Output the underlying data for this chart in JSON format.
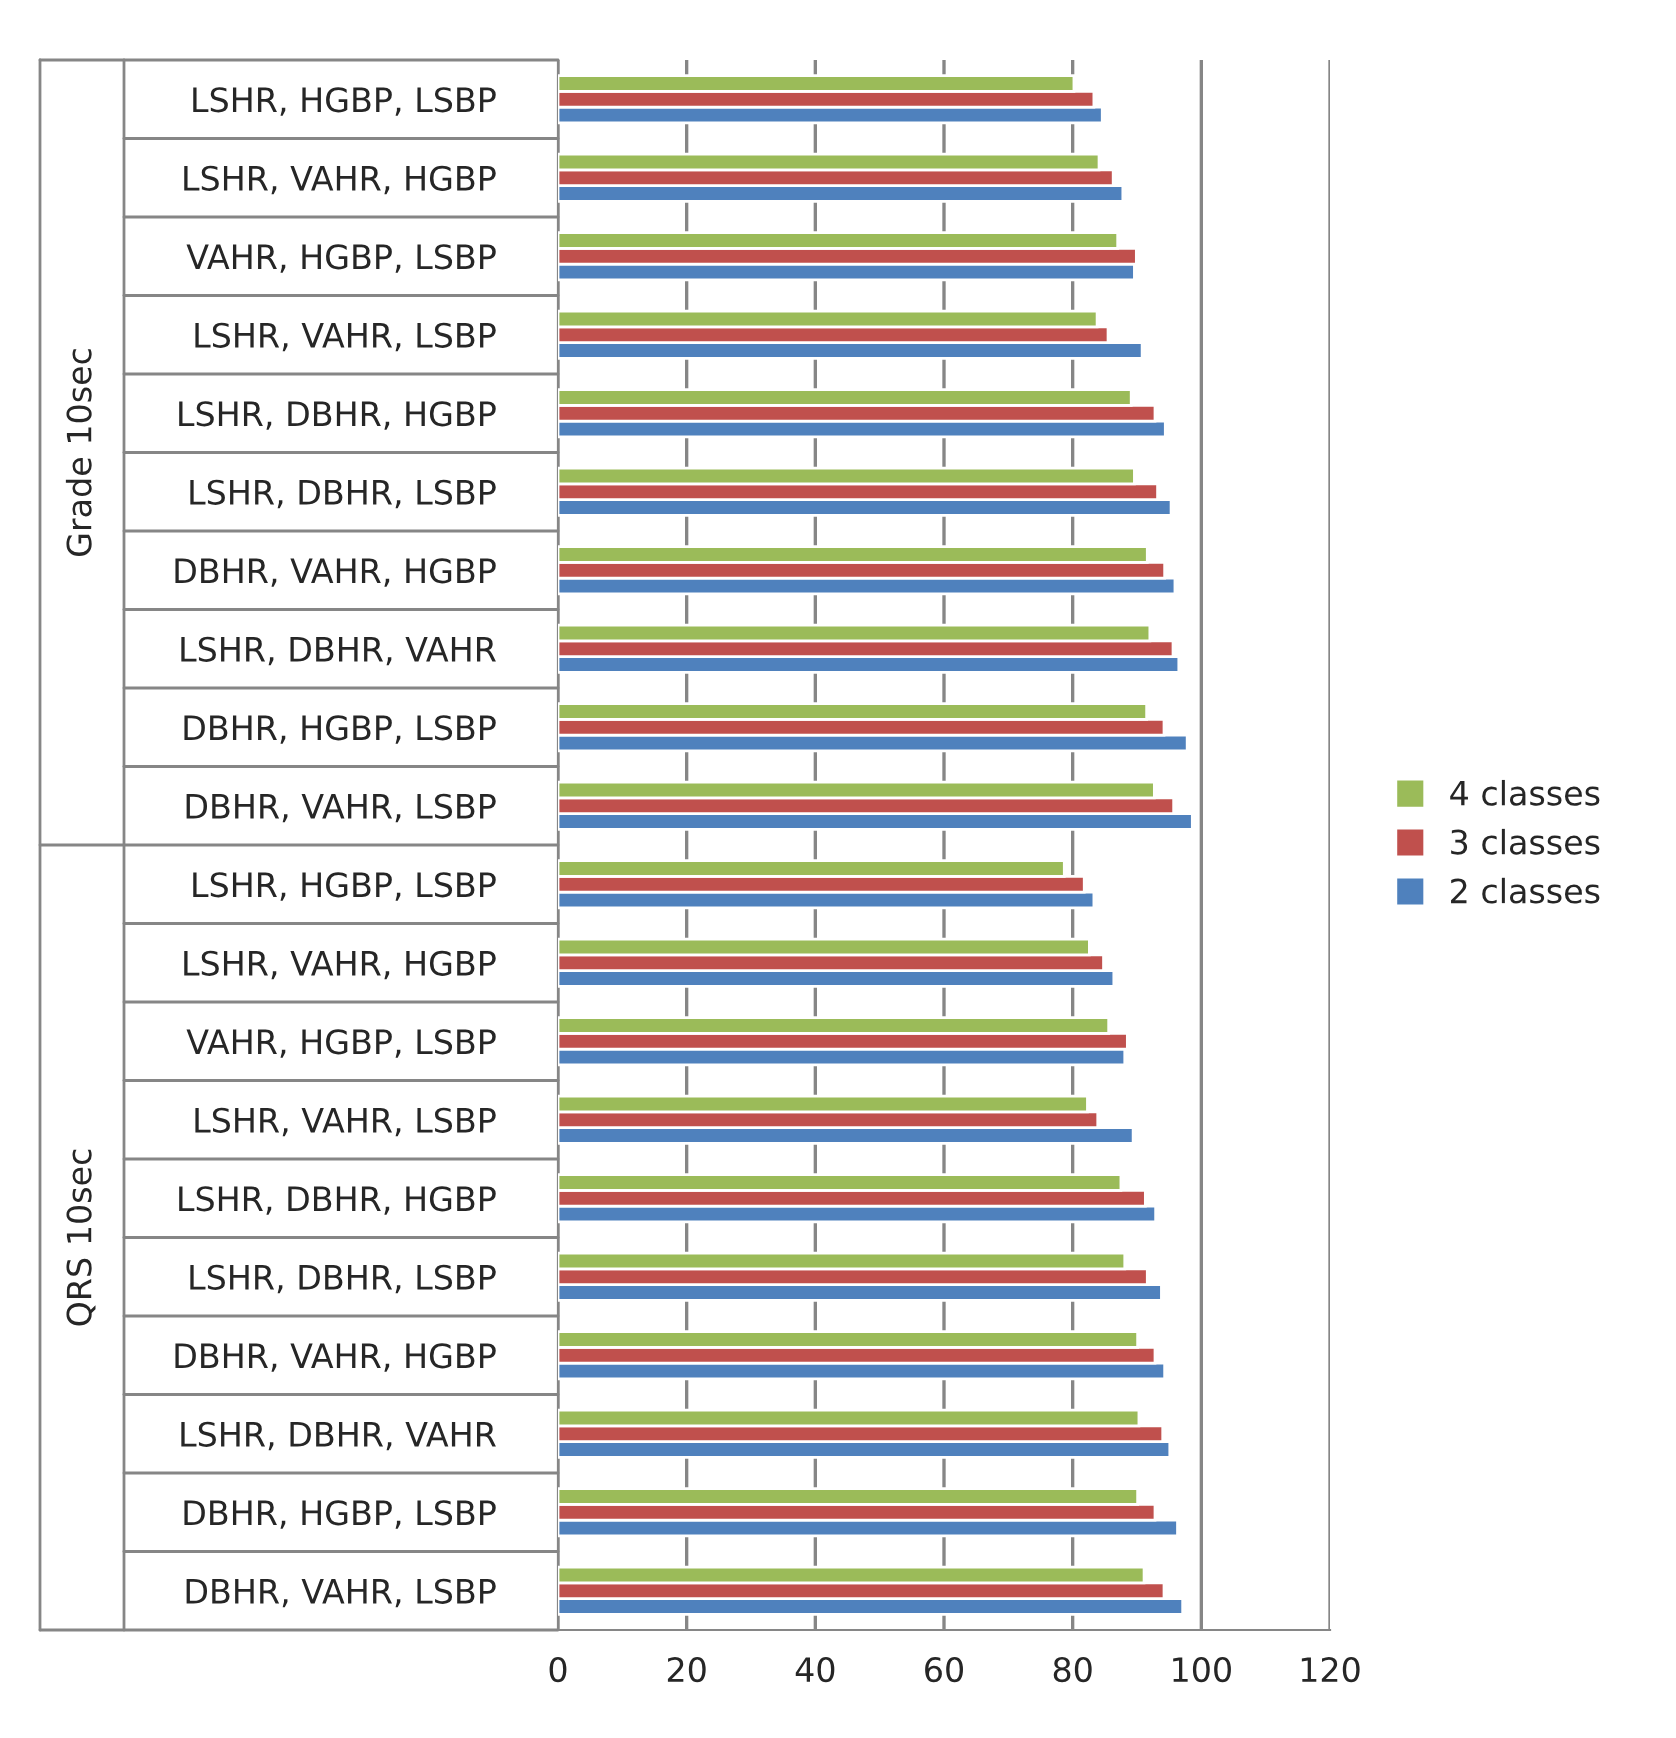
{
  "chart_data": {
    "type": "bar",
    "orientation": "horizontal",
    "categories": [
      "LSHR, HGBP, LSBP",
      "LSHR, VAHR, HGBP",
      "VAHR, HGBP, LSBP",
      "LSHR, VAHR, LSBP",
      "LSHR, DBHR, HGBP",
      "LSHR, DBHR, LSBP",
      "DBHR, VAHR, HGBP",
      "LSHR, DBHR, VAHR",
      "DBHR, HGBP, LSBP",
      "DBHR, VAHR, LSBP",
      "LSHR, HGBP, LSBP",
      "LSHR, VAHR, HGBP",
      "VAHR, HGBP, LSBP",
      "LSHR, VAHR, LSBP",
      "LSHR, DBHR, HGBP",
      "LSHR, DBHR, LSBP",
      "DBHR, VAHR, HGBP",
      "LSHR, DBHR, VAHR",
      "DBHR, HGBP, LSBP",
      "DBHR, VAHR, LSBP"
    ],
    "series": [
      {
        "name": "2 classes",
        "color": "#4f81bd",
        "values": [
          84.6,
          87.8,
          89.6,
          90.8,
          94.4,
          95.3,
          95.9,
          96.5,
          97.8,
          98.6,
          83.3,
          86.4,
          88.1,
          89.4,
          92.9,
          93.8,
          94.3,
          95.1,
          96.3,
          97.1
        ]
      },
      {
        "name": "3 classes",
        "color": "#c0504d",
        "values": [
          83.3,
          86.3,
          89.9,
          85.5,
          92.8,
          93.2,
          94.3,
          95.6,
          94.2,
          95.7,
          81.8,
          84.8,
          88.5,
          83.9,
          91.3,
          91.6,
          92.8,
          94.0,
          92.8,
          94.2
        ]
      },
      {
        "name": "4 classes",
        "color": "#9bbb59",
        "values": [
          80.2,
          84.1,
          87.0,
          83.8,
          89.1,
          89.6,
          91.6,
          92.0,
          91.5,
          92.7,
          78.7,
          82.6,
          85.6,
          82.3,
          87.5,
          88.1,
          90.1,
          90.3,
          90.1,
          91.1
        ]
      }
    ],
    "xlim": [
      0,
      120
    ],
    "xticks": [
      0,
      20,
      40,
      60,
      80,
      100,
      120
    ],
    "grid": "x",
    "legend": "right",
    "annotations": [
      "Grade 10sec",
      "QRS 10sec"
    ]
  }
}
